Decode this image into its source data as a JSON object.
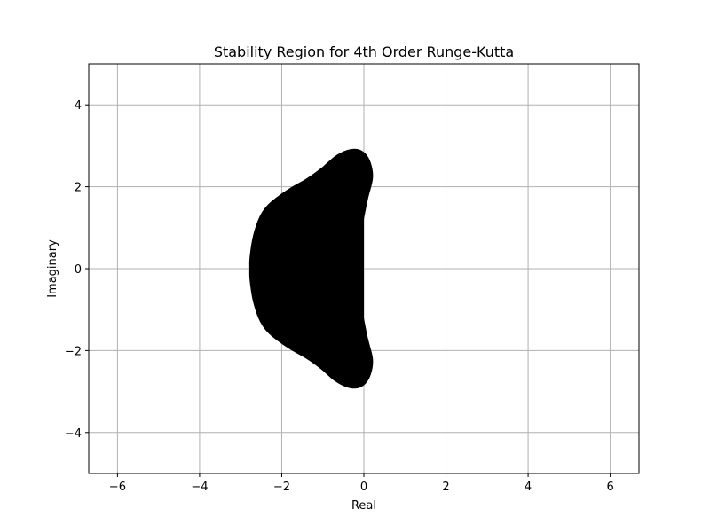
{
  "chart_data": {
    "type": "area",
    "title": "Stability Region for 4th Order Runge-Kutta",
    "xlabel": "Real",
    "ylabel": "Imaginary",
    "xlim": [
      -6.7,
      6.7
    ],
    "ylim": [
      -5,
      5
    ],
    "grid": true,
    "x_ticks": [
      -6,
      -4,
      -2,
      0,
      2,
      4,
      6
    ],
    "y_ticks": [
      -4,
      -2,
      0,
      2,
      4
    ],
    "x_tick_labels": [
      "−6",
      "−4",
      "−2",
      "0",
      "2",
      "4",
      "6"
    ],
    "y_tick_labels": [
      "−4",
      "−2",
      "0",
      "2",
      "4"
    ],
    "fill_color": "#000000",
    "grid_color": "#b0b0b0",
    "region_boundary": [
      {
        "x": 0.0,
        "y": 1.2
      },
      {
        "x": 0.1,
        "y": 1.7
      },
      {
        "x": 0.22,
        "y": 2.2
      },
      {
        "x": 0.18,
        "y": 2.55
      },
      {
        "x": 0.05,
        "y": 2.8
      },
      {
        "x": -0.15,
        "y": 2.92
      },
      {
        "x": -0.4,
        "y": 2.9
      },
      {
        "x": -0.7,
        "y": 2.75
      },
      {
        "x": -1.05,
        "y": 2.45
      },
      {
        "x": -1.4,
        "y": 2.2
      },
      {
        "x": -1.75,
        "y": 2.0
      },
      {
        "x": -2.05,
        "y": 1.8
      },
      {
        "x": -2.35,
        "y": 1.55
      },
      {
        "x": -2.55,
        "y": 1.25
      },
      {
        "x": -2.7,
        "y": 0.8
      },
      {
        "x": -2.78,
        "y": 0.3
      },
      {
        "x": -2.79,
        "y": 0.0
      },
      {
        "x": -2.78,
        "y": -0.3
      },
      {
        "x": -2.7,
        "y": -0.8
      },
      {
        "x": -2.55,
        "y": -1.25
      },
      {
        "x": -2.35,
        "y": -1.55
      },
      {
        "x": -2.05,
        "y": -1.8
      },
      {
        "x": -1.75,
        "y": -2.0
      },
      {
        "x": -1.4,
        "y": -2.2
      },
      {
        "x": -1.05,
        "y": -2.45
      },
      {
        "x": -0.7,
        "y": -2.75
      },
      {
        "x": -0.4,
        "y": -2.9
      },
      {
        "x": -0.15,
        "y": -2.92
      },
      {
        "x": 0.05,
        "y": -2.8
      },
      {
        "x": 0.18,
        "y": -2.55
      },
      {
        "x": 0.22,
        "y": -2.2
      },
      {
        "x": 0.1,
        "y": -1.7
      },
      {
        "x": 0.0,
        "y": -1.2
      }
    ]
  }
}
